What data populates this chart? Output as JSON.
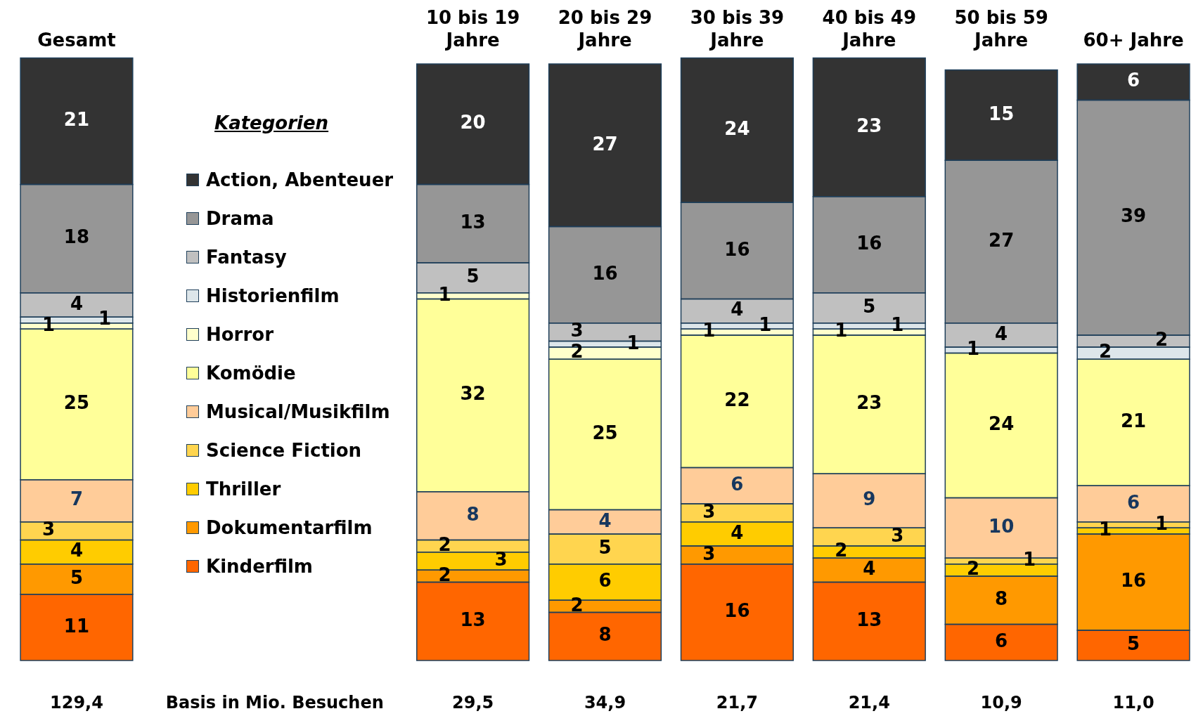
{
  "chart_data": {
    "type": "bar",
    "stacked": true,
    "legend": "left",
    "legend_title": "Kategorien",
    "data_labels": true,
    "tick_labels": "x",
    "grid": false,
    "ylim": [
      0,
      100
    ],
    "categories": [
      "Gesamt",
      null,
      null,
      "10 bis 19 Jahre",
      "20 bis 29 Jahre",
      "30 bis 39 Jahre",
      "40 bis 49 Jahre",
      "50 bis 59 Jahre",
      "60+ Jahre"
    ],
    "series": [
      {
        "name": "Kinderfilm",
        "color": "#ff6600",
        "values": [
          11,
          null,
          null,
          13,
          8,
          16,
          13,
          6,
          5
        ]
      },
      {
        "name": "Dokumentarfilm",
        "color": "#ff9900",
        "values": [
          5,
          null,
          null,
          2,
          2,
          3,
          4,
          8,
          16
        ]
      },
      {
        "name": "Thriller",
        "color": "#ffcc00",
        "values": [
          4,
          null,
          null,
          3,
          6,
          4,
          2,
          2,
          1
        ]
      },
      {
        "name": "Science Fiction",
        "color": "#ffd54f",
        "values": [
          3,
          null,
          null,
          2,
          5,
          3,
          3,
          1,
          1
        ]
      },
      {
        "name": "Musical/Musikfilm",
        "color": "#ffcc99",
        "values": [
          7,
          null,
          null,
          8,
          4,
          6,
          9,
          10,
          6
        ]
      },
      {
        "name": "Komödie",
        "color": "#ffff99",
        "values": [
          25,
          null,
          null,
          32,
          25,
          22,
          23,
          24,
          21
        ]
      },
      {
        "name": "Horror",
        "color": "#ffffcc",
        "values": [
          1,
          null,
          null,
          1,
          2,
          1,
          1,
          null,
          null
        ]
      },
      {
        "name": "Historienfilm",
        "color": "#dde6ea",
        "values": [
          1,
          null,
          null,
          null,
          1,
          1,
          1,
          1,
          2
        ]
      },
      {
        "name": "Fantasy",
        "color": "#c0c0c0",
        "values": [
          4,
          null,
          null,
          5,
          3,
          4,
          5,
          4,
          2
        ]
      },
      {
        "name": "Drama",
        "color": "#969696",
        "values": [
          18,
          null,
          null,
          13,
          16,
          16,
          16,
          27,
          39
        ]
      },
      {
        "name": "Action, Abenteuer",
        "color": "#333333",
        "values": [
          21,
          null,
          null,
          20,
          27,
          24,
          23,
          15,
          6
        ]
      }
    ],
    "annotations": [
      "129,4",
      "Basis in Mio. Besuchen",
      "29,5",
      "34,9",
      "21,7",
      "21,4",
      "10,9",
      "11,0"
    ]
  }
}
